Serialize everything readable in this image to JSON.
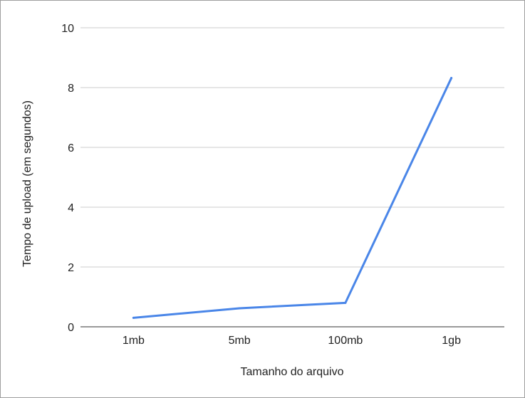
{
  "chart_data": {
    "type": "line",
    "title": "",
    "xlabel": "Tamanho do arquivo",
    "ylabel": "Tempo de upload (em segundos)",
    "categories": [
      "1mb",
      "5mb",
      "100mb",
      "1gb"
    ],
    "series": [
      {
        "values": [
          0.3,
          0.62,
          0.8,
          8.32
        ],
        "color": "#4a86e8"
      }
    ],
    "ylim": [
      0,
      10
    ],
    "yticks": [
      "0",
      "2",
      "4",
      "6",
      "8",
      "10"
    ],
    "grid": true,
    "legend": "none",
    "colors": {
      "line": "#4a86e8",
      "grid": "#cccccc",
      "axis": "#333333",
      "text": "#222222"
    }
  }
}
